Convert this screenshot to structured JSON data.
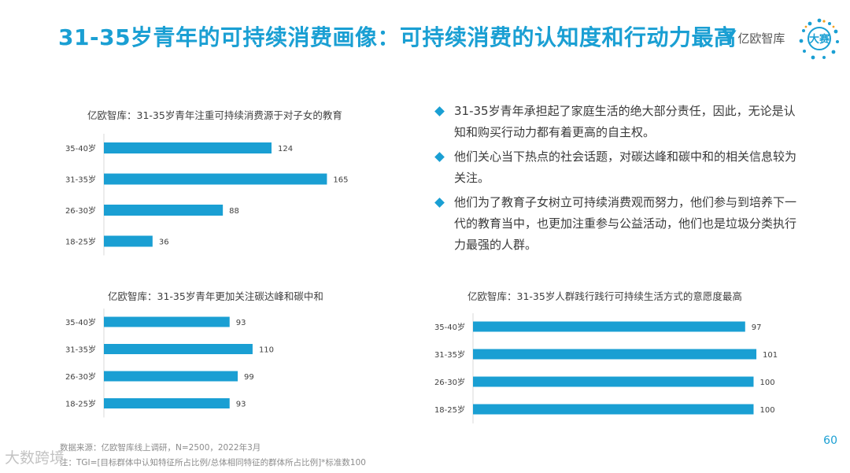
{
  "title": "31-35岁青年的可持续消费画像：可持续消费的认知度和行动力最高",
  "logo": {
    "mark": "Y",
    "text": "亿欧智库"
  },
  "badge": {
    "icon": "globe-badge-icon",
    "text": "大赛"
  },
  "bullets": [
    "31-35岁青年承担起了家庭生活的绝大部分责任，因此，无论是认知和购买行动力都有着更高的自主权。",
    "他们关心当下热点的社会话题，对碳达峰和碳中和的相关信息较为关注。",
    "他们为了教育子女树立可持续消费观而努力，他们参与到培养下一代的教育当中，也更加注重参与公益活动，他们也是垃圾分类执行力最强的人群。"
  ],
  "colors": {
    "accent": "#1a9fd3",
    "bar": "#1a9fd3"
  },
  "chart_data": [
    {
      "type": "bar",
      "orientation": "horizontal",
      "title": "亿欧智库：31-35岁青年注重可持续消费源于对子女的教育",
      "categories": [
        "35-40岁",
        "31-35岁",
        "26-30岁",
        "18-25岁"
      ],
      "values": [
        124,
        165,
        88,
        36
      ],
      "xlim": [
        0,
        170
      ]
    },
    {
      "type": "bar",
      "orientation": "horizontal",
      "title": "亿欧智库：31-35岁青年更加关注碳达峰和碳中和",
      "categories": [
        "35-40岁",
        "31-35岁",
        "26-30岁",
        "18-25岁"
      ],
      "values": [
        93,
        110,
        99,
        93
      ],
      "xlim": [
        0,
        170
      ]
    },
    {
      "type": "bar",
      "orientation": "horizontal",
      "title": "亿欧智库：31-35岁人群践行践行可持续生活方式的意愿度最高",
      "categories": [
        "35-40岁",
        "31-35岁",
        "26-30岁",
        "18-25岁"
      ],
      "values": [
        97,
        101,
        100,
        100
      ],
      "xlim": [
        0,
        108
      ]
    }
  ],
  "source": {
    "line1": "数据来源：亿欧智库线上调研，N=2500，2022年3月",
    "line2": "注：TGI=[目标群体中认知特征所占比例/总体相同特征的群体所占比例]*标准数100"
  },
  "page_number": "60",
  "watermark": "大数跨境"
}
